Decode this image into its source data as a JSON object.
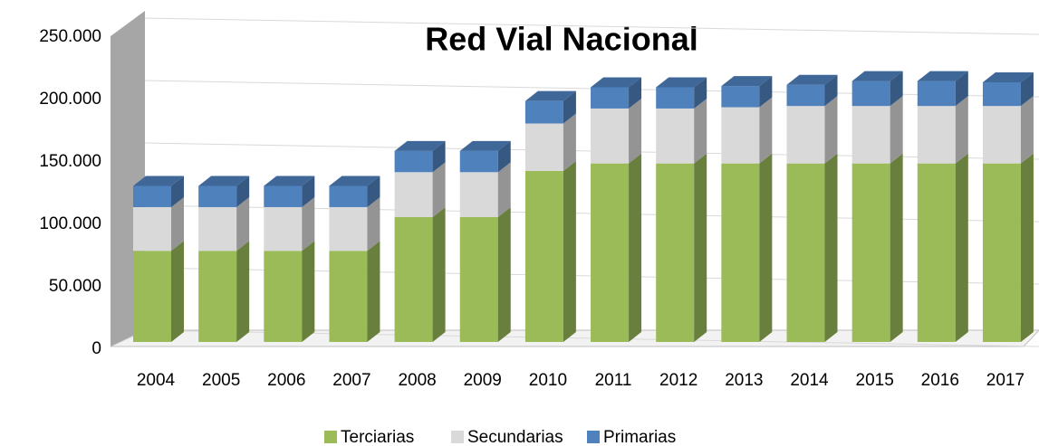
{
  "chart_data": {
    "type": "bar3d_stacked",
    "title": "Red Vial Nacional",
    "categories": [
      "2004",
      "2005",
      "2006",
      "2007",
      "2008",
      "2009",
      "2010",
      "2011",
      "2012",
      "2013",
      "2014",
      "2015",
      "2016",
      "2017"
    ],
    "series": [
      {
        "name": "Terciarias",
        "color": "#9bbb59",
        "values": [
          73000,
          73000,
          73000,
          73000,
          100000,
          100000,
          137000,
          143000,
          143000,
          143000,
          143000,
          143000,
          143000,
          143000
        ]
      },
      {
        "name": "Secundarias",
        "color": "#d9d9d9",
        "values": [
          35000,
          35000,
          35000,
          35000,
          36000,
          36000,
          38000,
          44000,
          44000,
          45000,
          46000,
          46000,
          46000,
          46000
        ]
      },
      {
        "name": "Primarias",
        "color": "#4f81bd",
        "values": [
          17000,
          17000,
          17000,
          17000,
          17000,
          17000,
          18000,
          17000,
          17000,
          17000,
          17000,
          20000,
          20000,
          19000
        ]
      }
    ],
    "ylim": [
      0,
      250000
    ],
    "yticks": [
      0,
      {
        "value": 50000,
        "label": "50.000"
      },
      {
        "value": 100000,
        "label": "100.000"
      },
      {
        "value": 150000,
        "label": "150.000"
      },
      {
        "value": 200000,
        "label": "200.000"
      },
      {
        "value": 250000,
        "label": "250.000"
      }
    ],
    "grid": true,
    "legend": "bottom"
  }
}
